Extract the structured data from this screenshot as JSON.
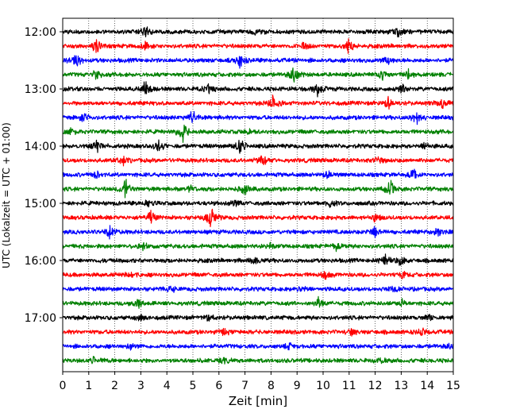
{
  "chart_data": {
    "type": "line",
    "subtype": "helicorder-seismogram",
    "xlabel": "Zeit  [min]",
    "ylabel": "UTC (Lokalzeit = UTC + 01:00)",
    "xlim": [
      0,
      15
    ],
    "x_ticks": [
      0,
      1,
      2,
      3,
      4,
      5,
      6,
      7,
      8,
      9,
      10,
      11,
      12,
      13,
      14,
      15
    ],
    "y_tick_labels": [
      "12:00",
      "13:00",
      "14:00",
      "15:00",
      "16:00",
      "17:00"
    ],
    "trace_interval_min": 15,
    "grid": "vertical-dotted",
    "colors": [
      "#000000",
      "#ff0000",
      "#0000ff",
      "#008000"
    ],
    "traces": [
      {
        "events": [
          [
            3.2,
            10
          ],
          [
            12.9,
            8
          ],
          [
            7.4,
            5
          ]
        ]
      },
      {
        "events": [
          [
            1.3,
            12
          ],
          [
            3.2,
            6
          ],
          [
            11.0,
            14
          ],
          [
            9.3,
            5
          ]
        ]
      },
      {
        "events": [
          [
            0.5,
            14
          ],
          [
            6.8,
            12
          ],
          [
            12.5,
            6
          ]
        ]
      },
      {
        "events": [
          [
            1.3,
            8
          ],
          [
            8.9,
            16
          ],
          [
            13.3,
            10
          ],
          [
            12.3,
            8
          ]
        ]
      },
      {
        "events": [
          [
            3.2,
            14
          ],
          [
            9.8,
            12
          ],
          [
            5.6,
            6
          ],
          [
            13.0,
            8
          ]
        ]
      },
      {
        "events": [
          [
            8.1,
            14
          ],
          [
            12.5,
            8
          ],
          [
            14.6,
            10
          ]
        ]
      },
      {
        "events": [
          [
            5.0,
            12
          ],
          [
            0.8,
            8
          ],
          [
            13.6,
            10
          ]
        ]
      },
      {
        "events": [
          [
            4.6,
            16
          ],
          [
            0.3,
            6
          ],
          [
            7.2,
            5
          ]
        ]
      },
      {
        "events": [
          [
            1.3,
            12
          ],
          [
            3.7,
            10
          ],
          [
            6.8,
            14
          ],
          [
            13.9,
            6
          ]
        ]
      },
      {
        "events": [
          [
            2.3,
            8
          ],
          [
            7.7,
            8
          ],
          [
            12.1,
            5
          ]
        ]
      },
      {
        "events": [
          [
            1.3,
            5
          ],
          [
            13.5,
            10
          ],
          [
            10.2,
            5
          ]
        ]
      },
      {
        "events": [
          [
            2.4,
            16
          ],
          [
            12.6,
            14
          ],
          [
            7.0,
            8
          ],
          [
            4.9,
            6
          ]
        ]
      },
      {
        "events": [
          [
            3.3,
            6
          ],
          [
            6.6,
            5
          ],
          [
            10.3,
            5
          ]
        ]
      },
      {
        "events": [
          [
            3.4,
            10
          ],
          [
            5.7,
            18
          ],
          [
            12.0,
            6
          ]
        ]
      },
      {
        "events": [
          [
            1.8,
            12
          ],
          [
            12.0,
            10
          ],
          [
            14.4,
            8
          ]
        ]
      },
      {
        "events": [
          [
            3.1,
            6
          ],
          [
            8.0,
            5
          ],
          [
            10.5,
            5
          ]
        ]
      },
      {
        "events": [
          [
            12.4,
            10
          ],
          [
            13.0,
            8
          ],
          [
            7.4,
            5
          ]
        ]
      },
      {
        "events": [
          [
            2.6,
            6
          ],
          [
            10.1,
            5
          ],
          [
            13.0,
            5
          ]
        ]
      },
      {
        "events": [
          [
            9.3,
            5
          ],
          [
            12.7,
            5
          ],
          [
            4.2,
            4
          ]
        ]
      },
      {
        "events": [
          [
            2.9,
            8
          ],
          [
            9.8,
            10
          ],
          [
            13.0,
            5
          ]
        ]
      },
      {
        "events": [
          [
            5.6,
            6
          ],
          [
            3.0,
            4
          ],
          [
            14.1,
            5
          ]
        ]
      },
      {
        "events": [
          [
            6.2,
            4
          ],
          [
            11.1,
            4
          ],
          [
            13.8,
            5
          ]
        ]
      },
      {
        "events": [
          [
            2.6,
            4
          ],
          [
            8.7,
            4
          ],
          [
            14.9,
            5
          ]
        ]
      },
      {
        "events": [
          [
            1.2,
            4
          ],
          [
            6.2,
            4
          ],
          [
            12.2,
            5
          ]
        ]
      }
    ]
  }
}
